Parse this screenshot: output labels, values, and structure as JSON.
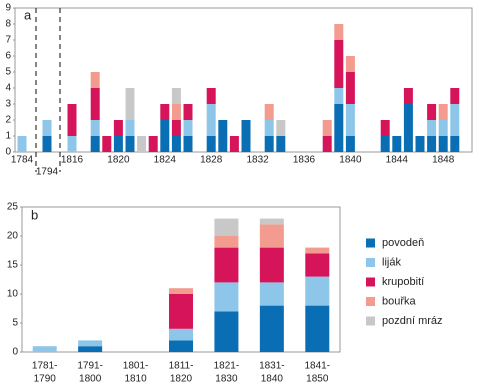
{
  "chart_data": [
    {
      "type": "bar",
      "label": "a",
      "categories": [
        "1784",
        "1794",
        "1816",
        null,
        null,
        null,
        "1820",
        null,
        null,
        null,
        "1824",
        null,
        null,
        null,
        "1828",
        null,
        null,
        null,
        "1832",
        null,
        null,
        null,
        "1836",
        null,
        null,
        null,
        "1840",
        null,
        null,
        null,
        "1844",
        null,
        null,
        null,
        "1848",
        null
      ],
      "series": [
        {
          "color": "#0a6eb4",
          "values": [
            0,
            1,
            0,
            0,
            1,
            0,
            1,
            1,
            0,
            0,
            2,
            1,
            1,
            0,
            1,
            2,
            0,
            2,
            0,
            1,
            1,
            0,
            0,
            0,
            0,
            3,
            1,
            0,
            0,
            1,
            1,
            3,
            1,
            1,
            1,
            1
          ]
        },
        {
          "color": "#8ec6ea",
          "values": [
            1,
            1,
            1,
            0,
            1,
            0,
            0,
            1,
            0,
            0,
            0,
            0,
            1,
            0,
            2,
            0,
            0,
            0,
            0,
            1,
            0,
            0,
            0,
            0,
            0,
            1,
            2,
            0,
            0,
            0,
            0,
            0,
            0,
            1,
            1,
            2
          ]
        },
        {
          "color": "#d6145a",
          "values": [
            0,
            0,
            2,
            0,
            2,
            1,
            1,
            0,
            0,
            1,
            1,
            1,
            1,
            0,
            1,
            0,
            1,
            0,
            0,
            0,
            0,
            0,
            0,
            0,
            1,
            3,
            2,
            0,
            0,
            1,
            0,
            1,
            0,
            1,
            0,
            1
          ]
        },
        {
          "color": "#f29b8e",
          "values": [
            0,
            0,
            0,
            0,
            1,
            0,
            0,
            0,
            0,
            0,
            0,
            1,
            0,
            0,
            0,
            0,
            0,
            0,
            0,
            1,
            0,
            0,
            0,
            0,
            1,
            1,
            1,
            0,
            0,
            0,
            0,
            0,
            0,
            0,
            1,
            0
          ]
        },
        {
          "color": "#c8c8c8",
          "values": [
            0,
            0,
            0,
            0,
            0,
            0,
            0,
            2,
            1,
            0,
            0,
            1,
            0,
            0,
            0,
            0,
            0,
            0,
            0,
            0,
            1,
            0,
            0,
            0,
            0,
            0,
            0,
            0,
            0,
            0,
            0,
            0,
            0,
            0,
            0,
            0
          ]
        }
      ],
      "ylim": [
        0,
        9
      ],
      "yticks": [
        0,
        1,
        2,
        3,
        4,
        5,
        6,
        7,
        8,
        9
      ]
    },
    {
      "type": "bar",
      "label": "b",
      "categories": [
        [
          "1781-",
          "1790"
        ],
        [
          "1791-",
          "1800"
        ],
        [
          "1801-",
          "1810"
        ],
        [
          "1811-",
          "1820"
        ],
        [
          "1821-",
          "1830"
        ],
        [
          "1831-",
          "1840"
        ],
        [
          "1841-",
          "1850"
        ]
      ],
      "series": [
        {
          "name": "povodeň",
          "color": "#0a6eb4",
          "values": [
            0,
            1,
            0,
            2,
            7,
            8,
            8
          ]
        },
        {
          "name": "liják",
          "color": "#8ec6ea",
          "values": [
            1,
            1,
            0,
            2,
            5,
            4,
            5
          ]
        },
        {
          "name": "krupobití",
          "color": "#d6145a",
          "values": [
            0,
            0,
            0,
            6,
            6,
            6,
            4
          ]
        },
        {
          "name": "bouřka",
          "color": "#f29b8e",
          "values": [
            0,
            0,
            0,
            1,
            2,
            4,
            1
          ]
        },
        {
          "name": "pozdní mráz",
          "color": "#c8c8c8",
          "values": [
            0,
            0,
            0,
            0,
            3,
            1,
            0
          ]
        }
      ],
      "ylim": [
        0,
        25
      ],
      "yticks": [
        0,
        5,
        10,
        15,
        20,
        25
      ]
    }
  ]
}
